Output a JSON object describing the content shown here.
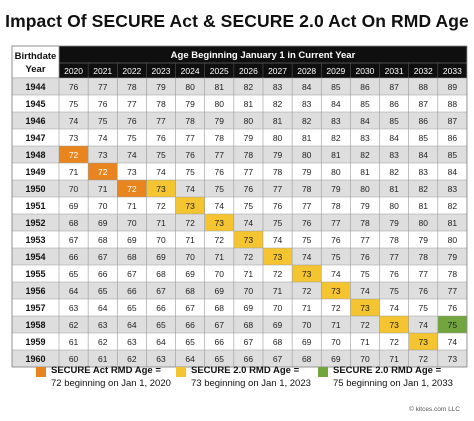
{
  "title": "Impact Of SECURE Act & SECURE 2.0 Act On RMD Age",
  "colors": {
    "header_bg": "#0f0f0f",
    "header_text": "#ffffff",
    "row_alt": "#dedede",
    "row_plain": "#ffffff",
    "secure_act": "#e8851f",
    "secure_2": "#f4c531",
    "secure_2_2033": "#72a53d",
    "grid": "#9a9a9a"
  },
  "chart_data": {
    "type": "table",
    "row_header_label": "Birthdate Year",
    "column_group_label": "Age Beginning January 1 in Current Year",
    "columns": [
      "2020",
      "2021",
      "2022",
      "2023",
      "2024",
      "2025",
      "2026",
      "2027",
      "2028",
      "2029",
      "2030",
      "2031",
      "2032",
      "2033"
    ],
    "rows": [
      {
        "year": "1944",
        "values": [
          "76",
          "77",
          "78",
          "79",
          "80",
          "81",
          "82",
          "83",
          "84",
          "85",
          "86",
          "87",
          "88",
          "89"
        ]
      },
      {
        "year": "1945",
        "values": [
          "75",
          "76",
          "77",
          "78",
          "79",
          "80",
          "81",
          "82",
          "83",
          "84",
          "85",
          "86",
          "87",
          "88"
        ]
      },
      {
        "year": "1946",
        "values": [
          "74",
          "75",
          "76",
          "77",
          "78",
          "79",
          "80",
          "81",
          "82",
          "83",
          "84",
          "85",
          "86",
          "87"
        ]
      },
      {
        "year": "1947",
        "values": [
          "73",
          "74",
          "75",
          "76",
          "77",
          "78",
          "79",
          "80",
          "81",
          "82",
          "83",
          "84",
          "85",
          "86"
        ]
      },
      {
        "year": "1948",
        "values": [
          "72",
          "73",
          "74",
          "75",
          "76",
          "77",
          "78",
          "79",
          "80",
          "81",
          "82",
          "83",
          "84",
          "85"
        ]
      },
      {
        "year": "1949",
        "values": [
          "71",
          "72",
          "73",
          "74",
          "75",
          "76",
          "77",
          "78",
          "79",
          "80",
          "81",
          "82",
          "83",
          "84"
        ]
      },
      {
        "year": "1950",
        "values": [
          "70",
          "71",
          "72",
          "73",
          "74",
          "75",
          "76",
          "77",
          "78",
          "79",
          "80",
          "81",
          "82",
          "83"
        ]
      },
      {
        "year": "1951",
        "values": [
          "69",
          "70",
          "71",
          "72",
          "73",
          "74",
          "75",
          "76",
          "77",
          "78",
          "79",
          "80",
          "81",
          "82"
        ]
      },
      {
        "year": "1952",
        "values": [
          "68",
          "69",
          "70",
          "71",
          "72",
          "73",
          "74",
          "75",
          "76",
          "77",
          "78",
          "79",
          "80",
          "81"
        ]
      },
      {
        "year": "1953",
        "values": [
          "67",
          "68",
          "69",
          "70",
          "71",
          "72",
          "73",
          "74",
          "75",
          "76",
          "77",
          "78",
          "79",
          "80"
        ]
      },
      {
        "year": "1954",
        "values": [
          "66",
          "67",
          "68",
          "69",
          "70",
          "71",
          "72",
          "73",
          "74",
          "75",
          "76",
          "77",
          "78",
          "79"
        ]
      },
      {
        "year": "1955",
        "values": [
          "65",
          "66",
          "67",
          "68",
          "69",
          "70",
          "71",
          "72",
          "73",
          "74",
          "75",
          "76",
          "77",
          "78"
        ]
      },
      {
        "year": "1956",
        "values": [
          "64",
          "65",
          "66",
          "67",
          "68",
          "69",
          "70",
          "71",
          "72",
          "73",
          "74",
          "75",
          "76",
          "77"
        ]
      },
      {
        "year": "1957",
        "values": [
          "63",
          "64",
          "65",
          "66",
          "67",
          "68",
          "69",
          "70",
          "71",
          "72",
          "73",
          "74",
          "75",
          "76"
        ]
      },
      {
        "year": "1958",
        "values": [
          "62",
          "63",
          "64",
          "65",
          "66",
          "67",
          "68",
          "69",
          "70",
          "71",
          "72",
          "73",
          "74",
          "75"
        ]
      },
      {
        "year": "1959",
        "values": [
          "61",
          "62",
          "63",
          "64",
          "65",
          "66",
          "67",
          "68",
          "69",
          "70",
          "71",
          "72",
          "73",
          "74"
        ]
      },
      {
        "year": "1960",
        "values": [
          "60",
          "61",
          "62",
          "63",
          "64",
          "65",
          "66",
          "67",
          "68",
          "69",
          "70",
          "71",
          "72",
          "73"
        ]
      }
    ],
    "highlights": [
      {
        "row": "1948",
        "col": "2020",
        "kind": "secure_act"
      },
      {
        "row": "1949",
        "col": "2021",
        "kind": "secure_act"
      },
      {
        "row": "1950",
        "col": "2022",
        "kind": "secure_act"
      },
      {
        "row": "1950",
        "col": "2023",
        "kind": "secure_2"
      },
      {
        "row": "1951",
        "col": "2024",
        "kind": "secure_2"
      },
      {
        "row": "1952",
        "col": "2025",
        "kind": "secure_2"
      },
      {
        "row": "1953",
        "col": "2026",
        "kind": "secure_2"
      },
      {
        "row": "1954",
        "col": "2027",
        "kind": "secure_2"
      },
      {
        "row": "1955",
        "col": "2028",
        "kind": "secure_2"
      },
      {
        "row": "1956",
        "col": "2029",
        "kind": "secure_2"
      },
      {
        "row": "1957",
        "col": "2030",
        "kind": "secure_2"
      },
      {
        "row": "1958",
        "col": "2031",
        "kind": "secure_2"
      },
      {
        "row": "1959",
        "col": "2032",
        "kind": "secure_2"
      },
      {
        "row": "1958",
        "col": "2033",
        "kind": "secure_2_2033"
      }
    ]
  },
  "legend": [
    {
      "kind": "secure_act",
      "label": "SECURE Act RMD Age =",
      "sub": "72 beginning on Jan 1, 2020"
    },
    {
      "kind": "secure_2",
      "label": "SECURE 2.0 RMD Age =",
      "sub": "73 beginning on Jan 1, 2023"
    },
    {
      "kind": "secure_2_2033",
      "label": "SECURE 2.0 RMD Age =",
      "sub": "75 beginning on Jan 1, 2033"
    }
  ],
  "credit": "© kitces.com LLC"
}
